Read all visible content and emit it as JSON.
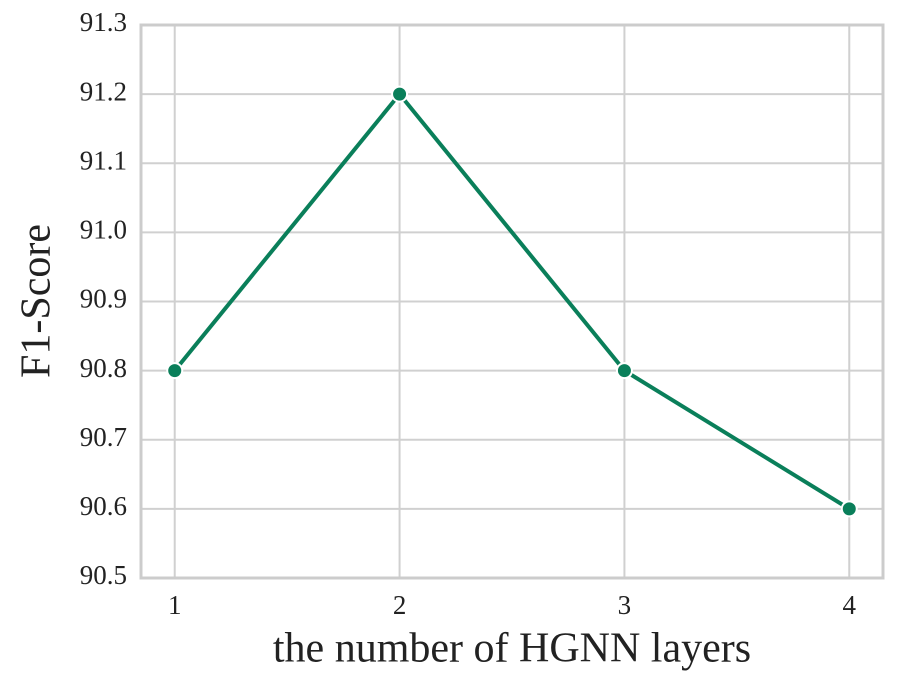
{
  "chart_data": {
    "type": "line",
    "x_label": "the number of HGNN layers",
    "y_label": "F1-Score",
    "x": [
      1,
      2,
      3,
      4
    ],
    "series": [
      {
        "name": "F1-Score",
        "color": "#0a7f5a",
        "values": [
          90.8,
          91.2,
          90.8,
          90.6
        ]
      }
    ],
    "xlim": [
      0.85,
      4.15
    ],
    "xticks": [
      1,
      2,
      3,
      4
    ],
    "ylim": [
      90.5,
      91.3
    ],
    "yticks": [
      90.5,
      90.6,
      90.7,
      90.8,
      90.9,
      {
        "value": 91.0,
        "label": "91.0"
      },
      91.1,
      91.2,
      91.3
    ],
    "grid": true
  }
}
